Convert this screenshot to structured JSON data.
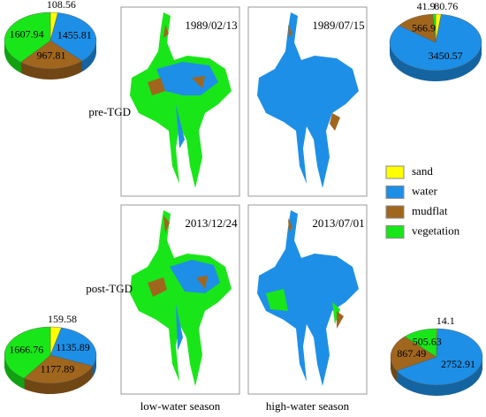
{
  "chart_data": [
    {
      "type": "pie",
      "values": [
        108.56,
        1455.81,
        967.81,
        1607.94
      ]
    },
    {
      "type": "pie",
      "values": [
        80.76,
        3450.57,
        566.9,
        41.9
      ]
    },
    {
      "type": "pie",
      "values": [
        159.58,
        1135.89,
        1177.89,
        1666.76
      ]
    },
    {
      "type": "pie",
      "values": [
        14.1,
        2752.91,
        867.49,
        505.63
      ]
    }
  ],
  "legend": {
    "labels": [
      "sand",
      "water",
      "mudflat",
      "vegetation"
    ],
    "colors": [
      "#ffff00",
      "#1e8fe6",
      "#a0661e",
      "#19e619"
    ]
  },
  "row_labels": [
    "pre-TGD",
    "post-TGD"
  ],
  "column_labels": [
    "low-water season",
    "high-water season"
  ],
  "map_dates": [
    "1989/02/13",
    "1989/07/15",
    "2013/12/24",
    "2013/07/01"
  ]
}
